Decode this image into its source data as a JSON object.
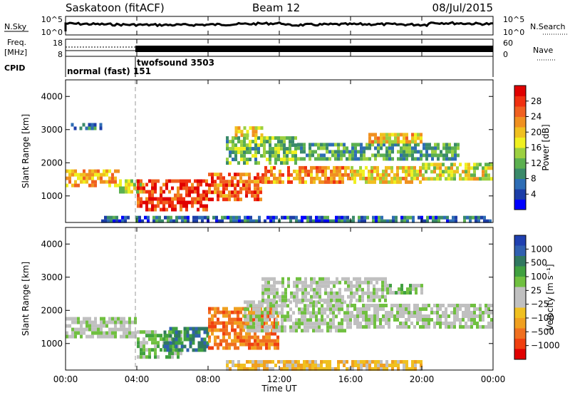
{
  "header": {
    "station": "Saskatoon (fitACF)",
    "beam": "Beam 12",
    "date": "08/Jul/2015"
  },
  "top_panels": {
    "nsky": {
      "left_label": "N.Sky",
      "left_ticks": [
        "10^5",
        "10^0"
      ],
      "right_ticks": [
        "10^5",
        "10^0"
      ],
      "right_label": "N.Search"
    },
    "freq": {
      "left_label_1": "Freq.",
      "left_label_2": "[MHz]",
      "left_ticks": [
        "18",
        "8"
      ],
      "right_ticks": [
        "60",
        "0"
      ],
      "right_label": "Nave"
    },
    "cpid": {
      "label": "CPID",
      "mode_1": "normal (fast) 151",
      "mode_2": "twofsound 3503",
      "switch_time": 4.0
    }
  },
  "chart_data": [
    {
      "type": "heatmap",
      "panel": "power",
      "xlabel": "Time UT",
      "ylabel": "Slant Range [km]",
      "xlim": [
        0,
        24
      ],
      "ylim": [
        200,
        4500
      ],
      "x_ticks": [
        "00:00",
        "04:00",
        "08:00",
        "12:00",
        "16:00",
        "20:00",
        "00:00"
      ],
      "y_ticks": [
        "1000",
        "2000",
        "3000",
        "4000"
      ],
      "colorbar": {
        "label": "Power [dB]",
        "ticks": [
          "4",
          "8",
          "12",
          "16",
          "20",
          "24",
          "28"
        ],
        "range": [
          0,
          30
        ],
        "colors": [
          "#0000ff",
          "#1c3ea8",
          "#2e6db5",
          "#3a8a6a",
          "#5cb050",
          "#9cd040",
          "#f0f020",
          "#f0c020",
          "#f09020",
          "#f06020",
          "#f03010",
          "#e00000"
        ]
      },
      "regions": [
        {
          "t0": 0.0,
          "t1": 3.0,
          "r0": 1300,
          "r1": 1800,
          "level": 20
        },
        {
          "t0": 3.0,
          "t1": 4.3,
          "r0": 1100,
          "r1": 1500,
          "level": 16
        },
        {
          "t0": 4.0,
          "t1": 8.0,
          "r0": 600,
          "r1": 1500,
          "level": 26
        },
        {
          "t0": 8.0,
          "t1": 11.0,
          "r0": 900,
          "r1": 1700,
          "level": 24
        },
        {
          "t0": 11.0,
          "t1": 16.0,
          "r0": 1400,
          "r1": 1900,
          "level": 22
        },
        {
          "t0": 16.0,
          "t1": 20.0,
          "r0": 1400,
          "r1": 1900,
          "level": 18
        },
        {
          "t0": 20.0,
          "t1": 24.0,
          "r0": 1500,
          "r1": 2000,
          "level": 16
        },
        {
          "t0": 9.0,
          "t1": 13.0,
          "r0": 2000,
          "r1": 2800,
          "level": 12
        },
        {
          "t0": 13.0,
          "t1": 22.0,
          "r0": 2100,
          "r1": 2600,
          "level": 10
        },
        {
          "t0": 17.0,
          "t1": 20.0,
          "r0": 2600,
          "r1": 2900,
          "level": 18
        },
        {
          "t0": 0.3,
          "t1": 2.0,
          "r0": 3000,
          "r1": 3200,
          "level": 6
        },
        {
          "t0": 9.5,
          "t1": 11.0,
          "r0": 2800,
          "r1": 3100,
          "level": 18
        },
        {
          "t0": 2.0,
          "t1": 24.0,
          "r0": 200,
          "r1": 400,
          "level": 6
        }
      ]
    },
    {
      "type": "heatmap",
      "panel": "velocity",
      "xlabel": "Time UT",
      "ylabel": "Slant Range [km]",
      "xlim": [
        0,
        24
      ],
      "ylim": [
        200,
        4500
      ],
      "x_ticks": [
        "00:00",
        "04:00",
        "08:00",
        "12:00",
        "16:00",
        "20:00",
        "00:00"
      ],
      "y_ticks": [
        "1000",
        "2000",
        "3000",
        "4000"
      ],
      "colorbar": {
        "label": "Velocity [m s⁻¹]",
        "ticks": [
          "1000",
          "500",
          "100",
          "25",
          "−25",
          "−100",
          "−500",
          "−1000"
        ],
        "colors": [
          "#2040b0",
          "#3060b0",
          "#307860",
          "#40a040",
          "#70c040",
          "#c0c0c0",
          "#c0c0c0",
          "#f0c020",
          "#f0a020",
          "#f07020",
          "#f04010",
          "#e00000"
        ]
      },
      "regions": [
        {
          "t0": 0.0,
          "t1": 4.0,
          "r0": 1200,
          "r1": 1800,
          "level": 25
        },
        {
          "t0": 4.0,
          "t1": 6.5,
          "r0": 600,
          "r1": 1400,
          "level": 100
        },
        {
          "t0": 5.5,
          "t1": 8.0,
          "r0": 800,
          "r1": 1500,
          "level": 500
        },
        {
          "t0": 8.0,
          "t1": 12.0,
          "r0": 900,
          "r1": 2100,
          "level": -500
        },
        {
          "t0": 10.0,
          "t1": 16.0,
          "r0": 1400,
          "r1": 2300,
          "level": 25
        },
        {
          "t0": 16.0,
          "t1": 24.0,
          "r0": 1500,
          "r1": 2200,
          "level": 25
        },
        {
          "t0": 11.0,
          "t1": 18.0,
          "r0": 2300,
          "r1": 3000,
          "level": 25
        },
        {
          "t0": 18.0,
          "t1": 20.0,
          "r0": 2500,
          "r1": 2800,
          "level": 100
        },
        {
          "t0": 9.0,
          "t1": 20.0,
          "r0": 200,
          "r1": 500,
          "level": -100
        }
      ]
    }
  ]
}
